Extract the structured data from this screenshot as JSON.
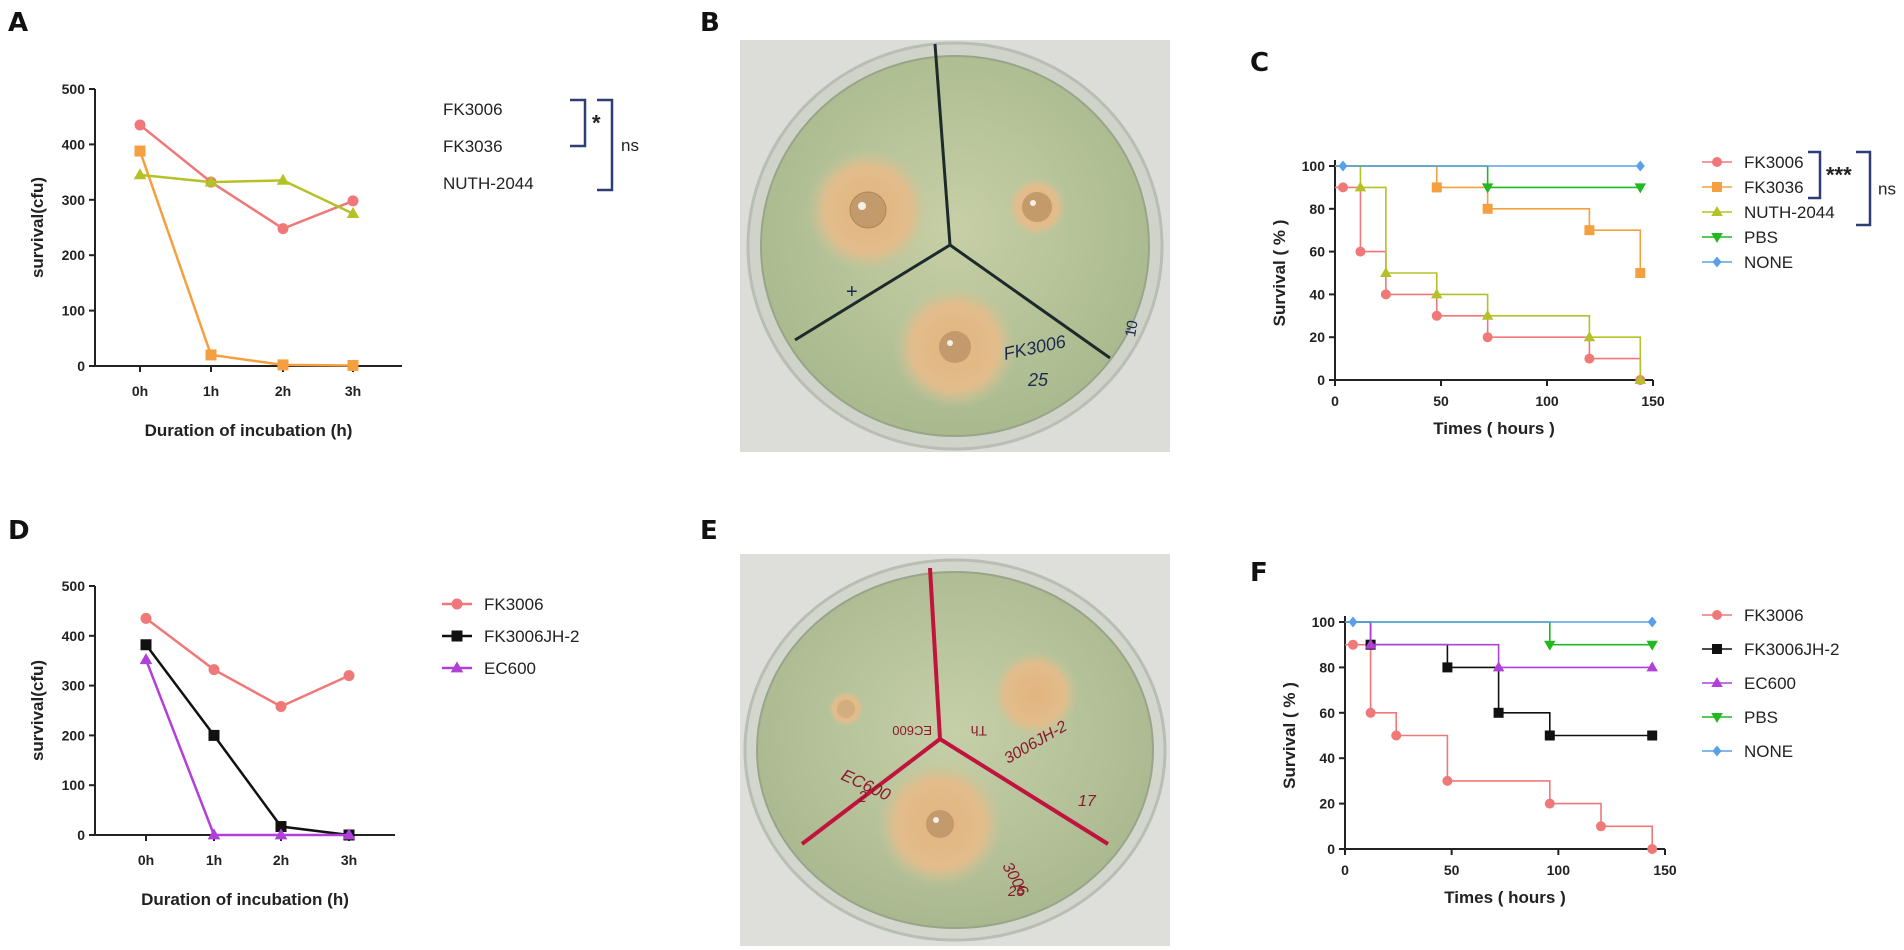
{
  "panels": {
    "a": {
      "letter": "A",
      "chart_data": {
        "type": "line",
        "categories": [
          "0h",
          "1h",
          "2h",
          "3h"
        ],
        "xlabel": "Duration of incubation (h)",
        "ylabel": "survival(cfu)",
        "ylim": [
          0,
          500
        ],
        "yticks": [
          0,
          100,
          200,
          300,
          400,
          500
        ],
        "series": [
          {
            "name": "FK3006",
            "values": [
              435,
              332,
              248,
              298
            ],
            "color": "#f07878",
            "marker": "circle"
          },
          {
            "name": "FK3036",
            "values": [
              388,
              20,
              2,
              1
            ],
            "color": "#f5a040",
            "marker": "square"
          },
          {
            "name": "NUTH-2044",
            "values": [
              345,
              332,
              335,
              275
            ],
            "color": "#b5c227",
            "marker": "triangle-up"
          }
        ],
        "annotations": [
          {
            "text": "*",
            "pair": [
              "FK3006",
              "FK3036"
            ]
          },
          {
            "text": "ns",
            "pair": [
              "FK3006",
              "NUTH-2044"
            ]
          }
        ]
      }
    },
    "b": {
      "letter": "B",
      "plate_labels": [
        "+",
        "-",
        "FK3006",
        "10",
        "25"
      ]
    },
    "c": {
      "letter": "C",
      "chart_data": {
        "type": "line",
        "xlabel": "Times ( hours )",
        "ylabel": "Survival ( % )",
        "xlim": [
          0,
          150
        ],
        "ylim": [
          0,
          100
        ],
        "xticks": [
          0,
          50,
          100,
          150
        ],
        "yticks": [
          0,
          20,
          40,
          60,
          80,
          100
        ],
        "series": [
          {
            "name": "FK3006",
            "color": "#f07878",
            "marker": "circle",
            "points": [
              [
                0,
                90
              ],
              [
                12,
                60
              ],
              [
                24,
                40
              ],
              [
                48,
                30
              ],
              [
                72,
                20
              ],
              [
                120,
                10
              ],
              [
                144,
                0
              ]
            ]
          },
          {
            "name": "FK3036",
            "color": "#f5a040",
            "marker": "square",
            "points": [
              [
                0,
                100
              ],
              [
                48,
                90
              ],
              [
                72,
                80
              ],
              [
                120,
                70
              ],
              [
                144,
                50
              ]
            ]
          },
          {
            "name": "NUTH-2044",
            "color": "#b5c227",
            "marker": "triangle-up",
            "points": [
              [
                0,
                100
              ],
              [
                12,
                90
              ],
              [
                24,
                50
              ],
              [
                48,
                40
              ],
              [
                72,
                30
              ],
              [
                120,
                20
              ],
              [
                144,
                0
              ]
            ]
          },
          {
            "name": "PBS",
            "color": "#22b822",
            "marker": "triangle-down",
            "points": [
              [
                0,
                100
              ],
              [
                72,
                90
              ],
              [
                144,
                90
              ]
            ]
          },
          {
            "name": "NONE",
            "color": "#5aa0e8",
            "marker": "diamond",
            "points": [
              [
                0,
                100
              ],
              [
                144,
                100
              ]
            ]
          }
        ],
        "annotations": [
          {
            "text": "***",
            "pair": [
              "FK3006",
              "FK3036"
            ]
          },
          {
            "text": "ns",
            "pair": [
              "FK3006",
              "NUTH-2044"
            ]
          }
        ]
      }
    },
    "d": {
      "letter": "D",
      "chart_data": {
        "type": "line",
        "categories": [
          "0h",
          "1h",
          "2h",
          "3h"
        ],
        "xlabel": "Duration of incubation (h)",
        "ylabel": "survival(cfu)",
        "ylim": [
          0,
          500
        ],
        "yticks": [
          0,
          100,
          200,
          300,
          400,
          500
        ],
        "series": [
          {
            "name": "FK3006",
            "values": [
              435,
              332,
              258,
              320
            ],
            "color": "#f07878",
            "marker": "circle"
          },
          {
            "name": "FK3006JH-2",
            "values": [
              382,
              200,
              17,
              0
            ],
            "color": "#111111",
            "marker": "square"
          },
          {
            "name": "EC600",
            "values": [
              352,
              0,
              0,
              0
            ],
            "color": "#b040d8",
            "marker": "triangle-up"
          }
        ]
      }
    },
    "e": {
      "letter": "E",
      "plate_labels": [
        "Th",
        "EC600",
        "EC600",
        "2",
        "3006JH-2",
        "17",
        "3006",
        "25"
      ]
    },
    "f": {
      "letter": "F",
      "chart_data": {
        "type": "line",
        "xlabel": "Times ( hours )",
        "ylabel": "Survival ( % )",
        "xlim": [
          0,
          150
        ],
        "ylim": [
          0,
          100
        ],
        "xticks": [
          0,
          50,
          100,
          150
        ],
        "yticks": [
          0,
          20,
          40,
          60,
          80,
          100
        ],
        "series": [
          {
            "name": "FK3006",
            "color": "#f07878",
            "marker": "circle",
            "points": [
              [
                0,
                90
              ],
              [
                12,
                60
              ],
              [
                24,
                50
              ],
              [
                48,
                30
              ],
              [
                96,
                20
              ],
              [
                120,
                10
              ],
              [
                144,
                0
              ]
            ]
          },
          {
            "name": "FK3006JH-2",
            "color": "#111111",
            "marker": "square",
            "points": [
              [
                0,
                100
              ],
              [
                12,
                90
              ],
              [
                48,
                80
              ],
              [
                72,
                60
              ],
              [
                96,
                50
              ],
              [
                144,
                50
              ]
            ]
          },
          {
            "name": "EC600",
            "color": "#b040d8",
            "marker": "triangle-up",
            "points": [
              [
                0,
                100
              ],
              [
                12,
                90
              ],
              [
                72,
                80
              ],
              [
                144,
                80
              ]
            ]
          },
          {
            "name": "PBS",
            "color": "#22b822",
            "marker": "triangle-down",
            "points": [
              [
                0,
                100
              ],
              [
                96,
                90
              ],
              [
                144,
                90
              ]
            ]
          },
          {
            "name": "NONE",
            "color": "#5aa0e8",
            "marker": "diamond",
            "points": [
              [
                0,
                100
              ],
              [
                144,
                100
              ]
            ]
          }
        ]
      }
    }
  }
}
